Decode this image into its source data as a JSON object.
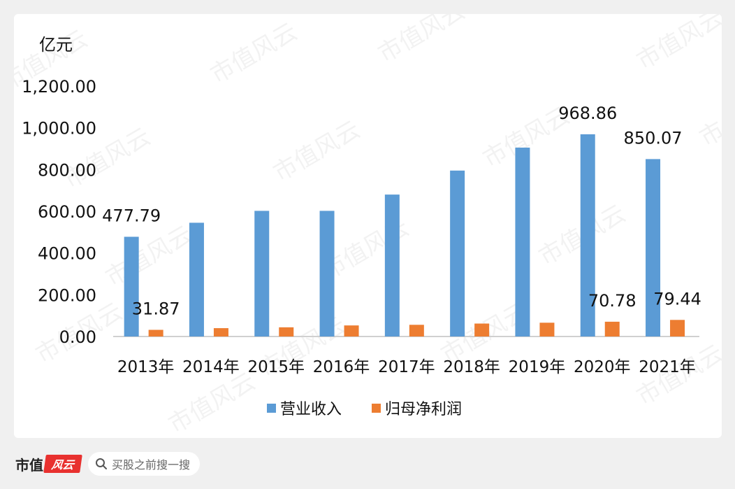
{
  "chart_data": {
    "type": "bar",
    "unit_label": "亿元",
    "categories": [
      "2013年",
      "2014年",
      "2015年",
      "2016年",
      "2017年",
      "2018年",
      "2019年",
      "2020年",
      "2021年"
    ],
    "series": [
      {
        "name": "营业收入",
        "color": "#5b9bd5",
        "values": [
          477.79,
          545,
          602,
          602,
          680,
          795,
          905,
          968.86,
          850.07
        ]
      },
      {
        "name": "归母净利润",
        "color": "#ed7d31",
        "values": [
          31.87,
          40,
          44,
          53,
          56,
          62,
          66,
          70.78,
          79.44
        ]
      }
    ],
    "data_labels": [
      {
        "series": 0,
        "index": 0,
        "text": "477.79"
      },
      {
        "series": 1,
        "index": 0,
        "text": "31.87"
      },
      {
        "series": 0,
        "index": 7,
        "text": "968.86"
      },
      {
        "series": 1,
        "index": 7,
        "text": "70.78"
      },
      {
        "series": 0,
        "index": 8,
        "text": "850.07"
      },
      {
        "series": 1,
        "index": 8,
        "text": "79.44"
      }
    ],
    "y_ticks": [
      "0.00",
      "200.00",
      "400.00",
      "600.00",
      "800.00",
      "1,000.00",
      "1,200.00"
    ],
    "ylim": [
      0,
      1200
    ],
    "grid": false,
    "legend_position": "bottom"
  },
  "watermark": "市值风云",
  "footer": {
    "brand_text": "市值",
    "brand_badge": "风云",
    "search_icon": "search-icon",
    "search_text": "买股之前搜一搜"
  }
}
